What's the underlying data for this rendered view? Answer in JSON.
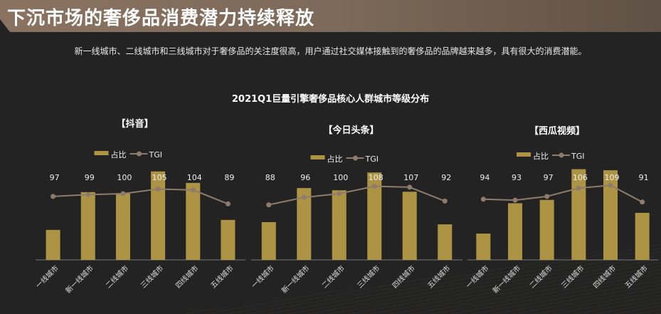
{
  "header": {
    "title": "下沉市场的奢侈品消费潜力持续释放",
    "subtitle": "新一线城市、二线城市和三线城市对于奢侈品的关注度很高，用户通过社交媒体接触到的奢侈品的品牌越来越多，具有很大的消费潜能。"
  },
  "colors": {
    "bar": "#ad9444",
    "line": "#8f7b6c",
    "background": "#232323"
  },
  "chart_data": {
    "title": "2021Q1巨量引擎奢侈品核心人群城市等级分布",
    "charts": [
      {
        "type": "bar",
        "subtitle": "【抖音】",
        "categories": [
          "一线城市",
          "新一线城市",
          "二线城市",
          "三线城市",
          "四线城市",
          "五线城市"
        ],
        "series": [
          {
            "name": "占比",
            "type": "bar",
            "values": [
              8.1,
              18.3,
              18.0,
              23.9,
              20.8,
              10.8
            ]
          },
          {
            "name": "TGI",
            "type": "line",
            "values": [
              97,
              99,
              100,
              105,
              104,
              89
            ]
          }
        ]
      },
      {
        "type": "bar",
        "subtitle": "【今日头条】",
        "categories": [
          "一线城市",
          "新一线城市",
          "二线城市",
          "三线城市",
          "四线城市",
          "五线城市"
        ],
        "series": [
          {
            "name": "占比",
            "type": "bar",
            "values": [
              10.2,
              19.4,
              18.8,
              23.6,
              18.4,
              9.6
            ]
          },
          {
            "name": "TGI",
            "type": "line",
            "values": [
              88,
              96,
              100,
              108,
              107,
              92
            ]
          }
        ]
      },
      {
        "type": "bar",
        "subtitle": "【西瓜视频】",
        "categories": [
          "一线城市",
          "新一线城市",
          "二线城市",
          "三线城市",
          "四线城市",
          "五线城市"
        ],
        "series": [
          {
            "name": "占比",
            "type": "bar",
            "values": [
              7.1,
              15.3,
              16.2,
              24.5,
              24.2,
              12.7
            ]
          },
          {
            "name": "TGI",
            "type": "line",
            "values": [
              94,
              93,
              97,
              106,
              109,
              91
            ]
          }
        ]
      }
    ]
  }
}
